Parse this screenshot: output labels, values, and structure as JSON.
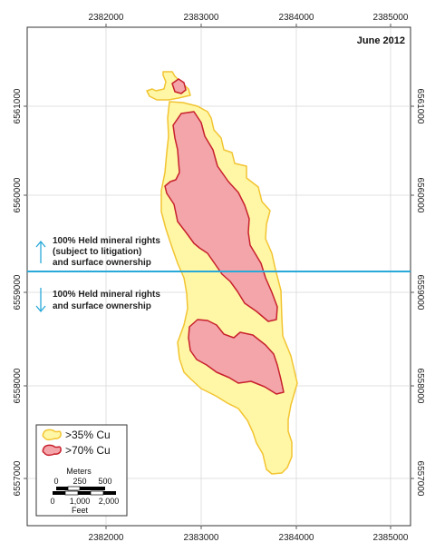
{
  "map": {
    "date_label": "June 2012",
    "x_ticks": [
      "2382000",
      "2383000",
      "2384000",
      "2385000"
    ],
    "y_ticks": [
      "6561000",
      "6560000",
      "6559000",
      "6558000",
      "6557000"
    ],
    "boundary_color": "#29a9d8",
    "notes": {
      "north_line1": "100% Held mineral rights",
      "north_line2": "(subject to litigation)",
      "north_line3": "and surface ownership",
      "south_line1": "100% Held mineral rights",
      "south_line2": "and surface ownership"
    },
    "zones": {
      "outer_fill": "#fff7a6",
      "outer_stroke": "#f2c431",
      "inner_fill": "#f3a5aa",
      "inner_stroke": "#c8202c"
    },
    "legend": {
      "item1_label": ">35% Cu",
      "item2_label": ">70% Cu"
    },
    "scale": {
      "meters_title": "Meters",
      "meters_0": "0",
      "meters_250": "250",
      "meters_500": "500",
      "feet_0": "0",
      "feet_1000": "1,000",
      "feet_2000": "2,000",
      "feet_title": "Feet"
    }
  }
}
